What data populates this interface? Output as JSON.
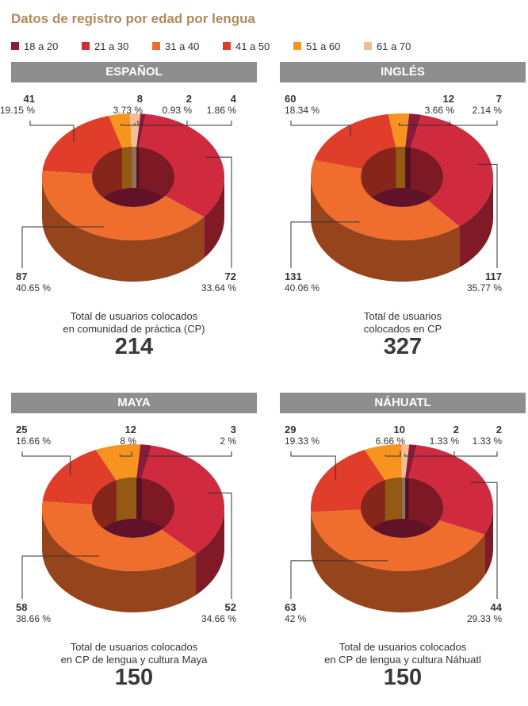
{
  "title": "Datos de registro por edad por lengua",
  "legend": [
    {
      "label": "18 a 20",
      "color": "#8b1a3b"
    },
    {
      "label": "21 a 30",
      "color": "#cf2a3e"
    },
    {
      "label": "31 a 40",
      "color": "#f06e2d"
    },
    {
      "label": "41 a 50",
      "color": "#e03e2a"
    },
    {
      "label": "51 a 60",
      "color": "#f6941f"
    },
    {
      "label": "61 a 70",
      "color": "#f2bd94"
    }
  ],
  "chart_data": [
    {
      "type": "pie",
      "title": "ESPAÑOL",
      "categories": [
        "18 a 20",
        "21 a 30",
        "31 a 40",
        "41 a 50",
        "51 a 60",
        "61 a 70"
      ],
      "values": [
        2,
        72,
        87,
        41,
        8,
        4
      ],
      "percents": [
        "0.93 %",
        "33.64 %",
        "40.65 %",
        "19.15 %",
        "3.73 %",
        "1.86 %"
      ],
      "caption": [
        "Total de usuarios colocados",
        "en comunidad de práctica (CP)"
      ],
      "total": "214"
    },
    {
      "type": "pie",
      "title": "INGLÉS",
      "categories": [
        "18 a 20",
        "21 a 30",
        "31 a 40",
        "41 a 50",
        "51 a 60"
      ],
      "values": [
        7,
        117,
        131,
        60,
        12
      ],
      "percents": [
        "2.14 %",
        "35.77 %",
        "40.06 %",
        "18.34 %",
        "3.66 %"
      ],
      "caption": [
        "Total de usuarios",
        "colocados en CP"
      ],
      "total": "327"
    },
    {
      "type": "pie",
      "title": "MAYA",
      "categories": [
        "18 a 20",
        "21 a 30",
        "31 a 40",
        "41 a 50",
        "51 a 60"
      ],
      "values": [
        3,
        52,
        58,
        25,
        12
      ],
      "percents": [
        "2 %",
        "34.66 %",
        "38.66 %",
        "16.66 %",
        "8 %"
      ],
      "caption": [
        "Total de usuarios colocados",
        "en CP de lengua y cultura Maya"
      ],
      "total": "150"
    },
    {
      "type": "pie",
      "title": "NÁHUATL",
      "categories": [
        "18 a 20",
        "21 a 30",
        "31 a 40",
        "41 a 50",
        "51 a 60",
        "61 a 70"
      ],
      "values": [
        2,
        44,
        63,
        29,
        10,
        2
      ],
      "percents": [
        "1.33 %",
        "29.33 %",
        "42 %",
        "19.33 %",
        "6.66 %",
        "1.33 %"
      ],
      "caption": [
        "Total de usuarios colocados",
        "en CP de lengua y cultura Náhuatl"
      ],
      "total": "150"
    }
  ]
}
